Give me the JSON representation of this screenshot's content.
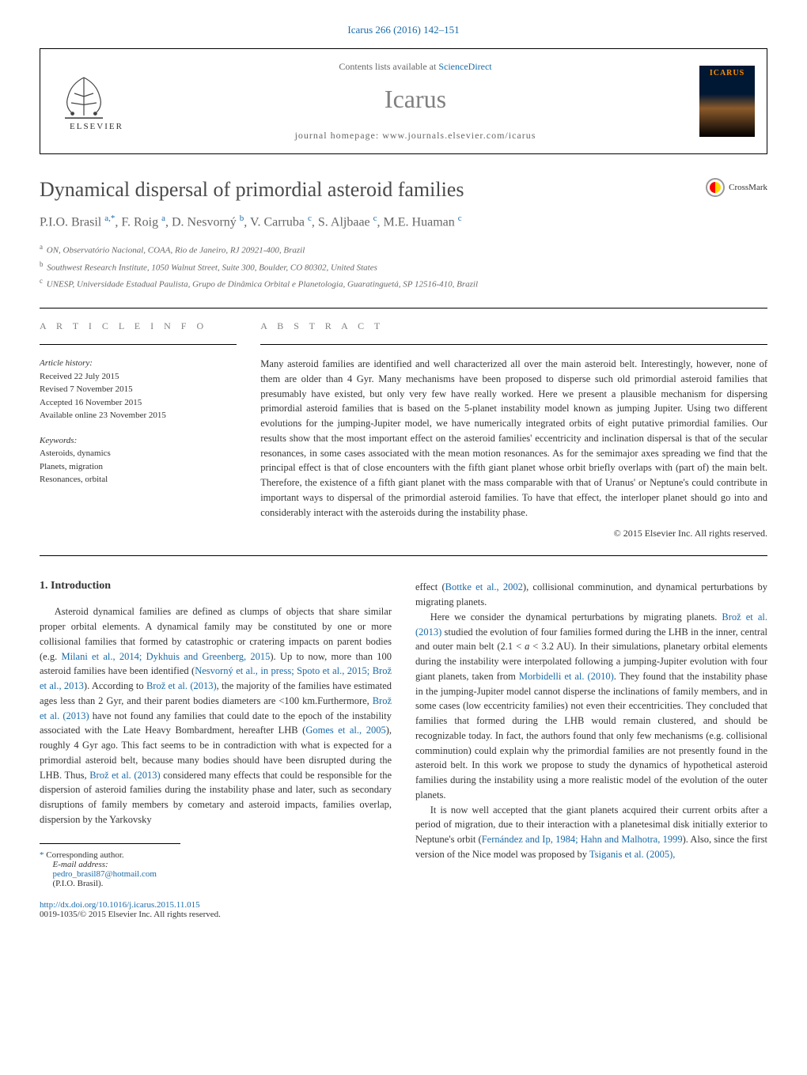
{
  "journal_ref": "Icarus 266 (2016) 142–151",
  "contents_text": "Contents lists available at ",
  "contents_link": "ScienceDirect",
  "journal_name": "Icarus",
  "homepage_label": "journal homepage: ",
  "homepage_url": "www.journals.elsevier.com/icarus",
  "elsevier_name": "ELSEVIER",
  "icarus_cover": "ICARUS",
  "crossmark_label": "CrossMark",
  "title": "Dynamical dispersal of primordial asteroid families",
  "authors_html": "P.I.O. Brasil <sup>a,*</sup>, F. Roig <sup>a</sup>, D. Nesvorný <sup>b</sup>, V. Carruba <sup>c</sup>, S. Aljbaae <sup>c</sup>, M.E. Huaman <sup>c</sup>",
  "affiliations": [
    {
      "sup": "a",
      "text": "ON, Observatório Nacional, COAA, Rio de Janeiro, RJ 20921-400, Brazil"
    },
    {
      "sup": "b",
      "text": "Southwest Research Institute, 1050 Walnut Street, Suite 300, Boulder, CO 80302, United States"
    },
    {
      "sup": "c",
      "text": "UNESP, Universidade Estadual Paulista, Grupo de Dinâmica Orbital e Planetologia, Guaratinguetá, SP 12516-410, Brazil"
    }
  ],
  "article_info_header": "A R T I C L E   I N F O",
  "abstract_header": "A B S T R A C T",
  "history_label": "Article history:",
  "history": [
    "Received 22 July 2015",
    "Revised 7 November 2015",
    "Accepted 16 November 2015",
    "Available online 23 November 2015"
  ],
  "keywords_label": "Keywords:",
  "keywords": [
    "Asteroids, dynamics",
    "Planets, migration",
    "Resonances, orbital"
  ],
  "abstract": "Many asteroid families are identified and well characterized all over the main asteroid belt. Interestingly, however, none of them are older than 4 Gyr. Many mechanisms have been proposed to disperse such old primordial asteroid families that presumably have existed, but only very few have really worked. Here we present a plausible mechanism for dispersing primordial asteroid families that is based on the 5-planet instability model known as jumping Jupiter. Using two different evolutions for the jumping-Jupiter model, we have numerically integrated orbits of eight putative primordial families. Our results show that the most important effect on the asteroid families' eccentricity and inclination dispersal is that of the secular resonances, in some cases associated with the mean motion resonances. As for the semimajor axes spreading we find that the principal effect is that of close encounters with the fifth giant planet whose orbit briefly overlaps with (part of) the main belt. Therefore, the existence of a fifth giant planet with the mass comparable with that of Uranus' or Neptune's could contribute in important ways to dispersal of the primordial asteroid families. To have that effect, the interloper planet should go into and considerably interact with the asteroids during the instability phase.",
  "copyright": "© 2015 Elsevier Inc. All rights reserved.",
  "intro_heading": "1. Introduction",
  "col1_paragraphs": [
    "Asteroid dynamical families are defined as clumps of objects that share similar proper orbital elements. A dynamical family may be constituted by one or more collisional families that formed by catastrophic or cratering impacts on parent bodies (e.g. <span class='ref-link'>Milani et al., 2014; Dykhuis and Greenberg, 2015</span>). Up to now, more than 100 asteroid families have been identified (<span class='ref-link'>Nesvorný et al., in press; Spoto et al., 2015; Brož et al., 2013</span>). According to <span class='ref-link'>Brož et al. (2013)</span>, the majority of the families have estimated ages less than 2 Gyr, and their parent bodies diameters are <100 km.Furthermore, <span class='ref-link'>Brož et al. (2013)</span> have not found any families that could date to the epoch of the instability associated with the Late Heavy Bombardment, hereafter LHB (<span class='ref-link'>Gomes et al., 2005</span>), roughly 4 Gyr ago. This fact seems to be in contradiction with what is expected for a primordial asteroid belt, because many bodies should have been disrupted during the LHB. Thus, <span class='ref-link'>Brož et al. (2013)</span> considered many effects that could be responsible for the dispersion of asteroid families during the instability phase and later, such as secondary disruptions of family members by cometary and asteroid impacts, families overlap, dispersion by the Yarkovsky"
  ],
  "col2_paragraphs": [
    "effect (<span class='ref-link'>Bottke et al., 2002</span>), collisional comminution, and dynamical perturbations by migrating planets.",
    "Here we consider the dynamical perturbations by migrating planets. <span class='ref-link'>Brož et al. (2013)</span> studied the evolution of four families formed during the LHB in the inner, central and outer main belt (2.1 < <i>a</i> < 3.2 AU). In their simulations, planetary orbital elements during the instability were interpolated following a jumping-Jupiter evolution with four giant planets, taken from <span class='ref-link'>Morbidelli et al. (2010)</span>. They found that the instability phase in the jumping-Jupiter model cannot disperse the inclinations of family members, and in some cases (low eccentricity families) not even their eccentricities. They concluded that families that formed during the LHB would remain clustered, and should be recognizable today. In fact, the authors found that only few mechanisms (e.g. collisional comminution) could explain why the primordial families are not presently found in the asteroid belt. In this work we propose to study the dynamics of hypothetical asteroid families during the instability using a more realistic model of the evolution of the outer planets.",
    "It is now well accepted that the giant planets acquired their current orbits after a period of migration, due to their interaction with a planetesimal disk initially exterior to Neptune's orbit (<span class='ref-link'>Fernández and Ip, 1984; Hahn and Malhotra, 1999</span>). Also, since the first version of the Nice model was proposed by <span class='ref-link'>Tsiganis et al. (2005),</span>"
  ],
  "corresponding": "* Corresponding author.",
  "email_label": "E-mail address: ",
  "email": "pedro_brasil87@hotmail.com",
  "email_name": " (P.I.O. Brasil).",
  "doi": "http://dx.doi.org/10.1016/j.icarus.2015.11.015",
  "issn_copyright": "0019-1035/© 2015 Elsevier Inc. All rights reserved."
}
